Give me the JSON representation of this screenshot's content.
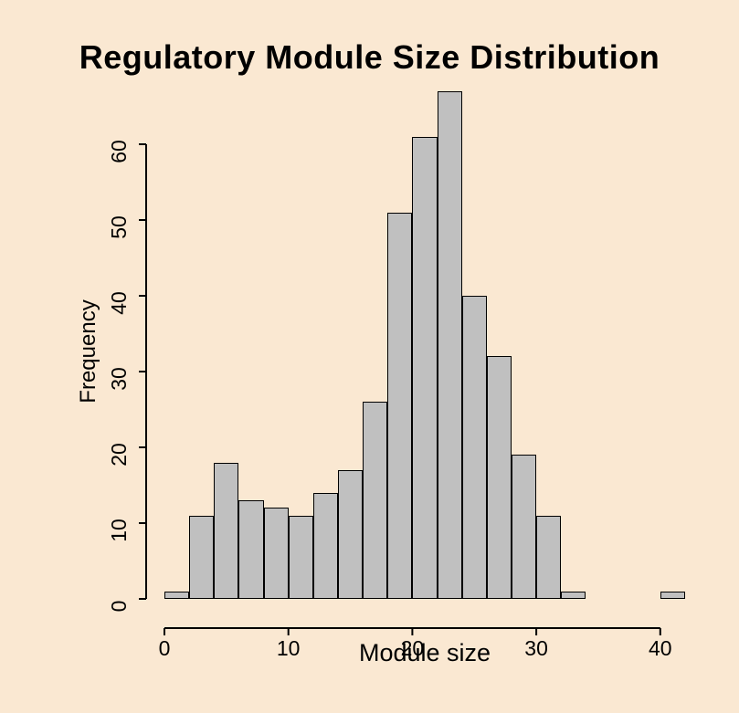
{
  "title": "Regulatory Module Size Distribution",
  "chart_data": {
    "type": "bar",
    "subtype": "histogram",
    "title": "Regulatory Module Size Distribution",
    "xlabel": "Module size",
    "ylabel": "Frequency",
    "bin_start": 0,
    "bin_width": 2,
    "bin_edges": [
      0,
      2,
      4,
      6,
      8,
      10,
      12,
      14,
      16,
      18,
      20,
      22,
      24,
      26,
      28,
      30,
      32,
      34,
      36,
      38,
      40,
      42
    ],
    "values": [
      1,
      11,
      18,
      13,
      12,
      11,
      14,
      17,
      26,
      51,
      61,
      67,
      40,
      32,
      19,
      11,
      1,
      0,
      0,
      0,
      1
    ],
    "x_ticks": [
      0,
      10,
      20,
      30,
      40
    ],
    "y_ticks": [
      0,
      10,
      20,
      30,
      40,
      50,
      60
    ],
    "xlim": [
      0,
      42
    ],
    "ylim": [
      0,
      67
    ],
    "grid": false,
    "legend": "none",
    "colors": {
      "background": "#fae8d2",
      "bar_fill": "#c0c0c0",
      "bar_stroke": "#000000",
      "axis": "#000000",
      "text": "#000000"
    }
  }
}
